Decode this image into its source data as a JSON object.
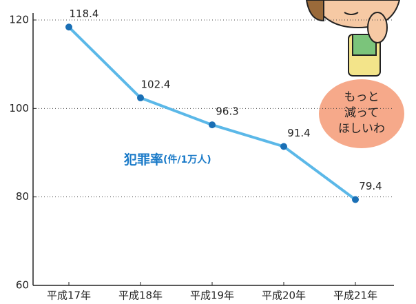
{
  "chart_data": {
    "type": "line",
    "categories": [
      "平成17年",
      "平成18年",
      "平成19年",
      "平成20年",
      "平成21年"
    ],
    "series": [
      {
        "name": "犯罪率",
        "unit": "(件/1万人)",
        "color": "#5bb8e8",
        "marker_color": "#1a6fb5",
        "values": [
          118.4,
          102.4,
          96.3,
          91.4,
          79.4
        ]
      }
    ],
    "ylim": [
      60,
      120
    ],
    "yticks": [
      60,
      80,
      100,
      120
    ],
    "grid": true,
    "annotation": {
      "lines": [
        "もっと",
        "減って",
        "ほしいわ"
      ]
    }
  }
}
